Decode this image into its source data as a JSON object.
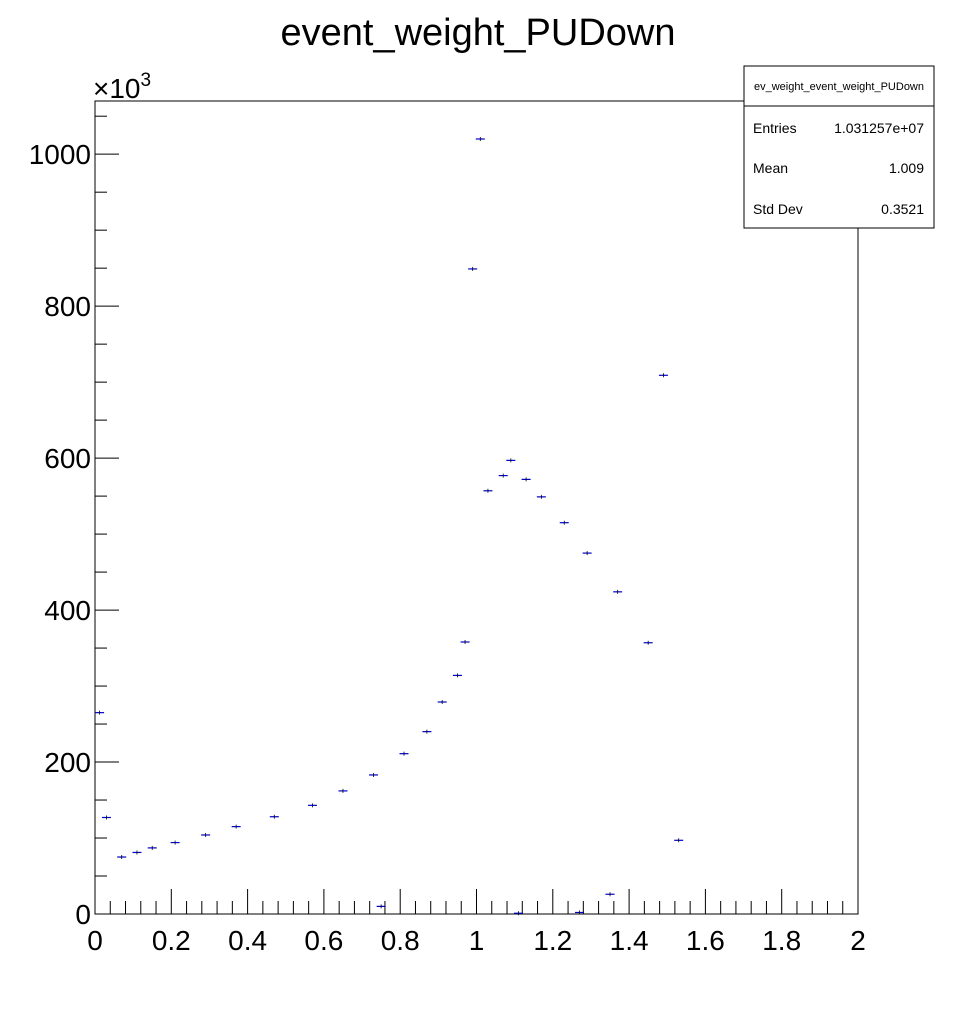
{
  "chart_data": {
    "type": "scatter",
    "title": "event_weight_PUDown",
    "xlabel": "",
    "ylabel": "",
    "xlim": [
      0,
      2
    ],
    "ylim": [
      0,
      1070
    ],
    "y_multiplier_label": "×10",
    "y_multiplier_exponent": "3",
    "x_ticks": [
      "0",
      "0.2",
      "0.4",
      "0.6",
      "0.8",
      "1",
      "1.2",
      "1.4",
      "1.6",
      "1.8",
      "2"
    ],
    "x_tick_values": [
      0,
      0.2,
      0.4,
      0.6,
      0.8,
      1.0,
      1.2,
      1.4,
      1.6,
      1.8,
      2.0
    ],
    "y_ticks": [
      "0",
      "200",
      "400",
      "600",
      "800",
      "1000"
    ],
    "y_tick_values": [
      0,
      200,
      400,
      600,
      800,
      1000
    ],
    "marker_color": "#0000cc",
    "series": [
      {
        "points": [
          {
            "x": 0.012,
            "y": 265
          },
          {
            "x": 0.03,
            "y": 127
          },
          {
            "x": 0.07,
            "y": 75
          },
          {
            "x": 0.11,
            "y": 81
          },
          {
            "x": 0.15,
            "y": 87
          },
          {
            "x": 0.21,
            "y": 94
          },
          {
            "x": 0.29,
            "y": 104
          },
          {
            "x": 0.37,
            "y": 115
          },
          {
            "x": 0.47,
            "y": 128
          },
          {
            "x": 0.57,
            "y": 143
          },
          {
            "x": 0.65,
            "y": 162
          },
          {
            "x": 0.73,
            "y": 183
          },
          {
            "x": 0.75,
            "y": 10
          },
          {
            "x": 0.81,
            "y": 211
          },
          {
            "x": 0.87,
            "y": 240
          },
          {
            "x": 0.91,
            "y": 279
          },
          {
            "x": 0.95,
            "y": 314
          },
          {
            "x": 0.97,
            "y": 358
          },
          {
            "x": 0.99,
            "y": 849
          },
          {
            "x": 1.01,
            "y": 1020
          },
          {
            "x": 1.03,
            "y": 557
          },
          {
            "x": 1.07,
            "y": 577
          },
          {
            "x": 1.09,
            "y": 597
          },
          {
            "x": 1.11,
            "y": 1
          },
          {
            "x": 1.13,
            "y": 572
          },
          {
            "x": 1.17,
            "y": 549
          },
          {
            "x": 1.23,
            "y": 515
          },
          {
            "x": 1.27,
            "y": 2
          },
          {
            "x": 1.29,
            "y": 475
          },
          {
            "x": 1.35,
            "y": 26
          },
          {
            "x": 1.37,
            "y": 424
          },
          {
            "x": 1.45,
            "y": 357
          },
          {
            "x": 1.49,
            "y": 709
          },
          {
            "x": 1.53,
            "y": 97
          }
        ]
      }
    ],
    "stats_box": {
      "title": "ev_weight_event_weight_PUDown",
      "rows": [
        {
          "label": "Entries",
          "value": "1.031257e+07"
        },
        {
          "label": "Mean",
          "value": "1.009"
        },
        {
          "label": "Std Dev",
          "value": "0.3521"
        }
      ]
    },
    "grid": false,
    "legend": "top-right"
  }
}
